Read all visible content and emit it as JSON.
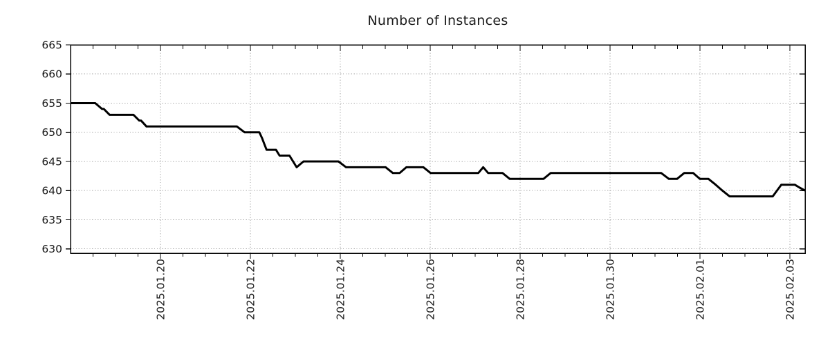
{
  "chart_data": {
    "type": "line",
    "title": "Number of Instances",
    "xlabel": "",
    "ylabel": "",
    "legend": "none",
    "grid": true,
    "grid_color": "#a6a6a6",
    "line_color": "#000000",
    "text_color": "#1a1a1a",
    "x_range_days": [
      0,
      16.34
    ],
    "x_minor_tick_step_days": 0.5,
    "x_major_tick_step_days": 2,
    "x_ticks": [
      {
        "t": 2,
        "label": "2025.01.20"
      },
      {
        "t": 4,
        "label": "2025.01.22"
      },
      {
        "t": 6,
        "label": "2025.01.24"
      },
      {
        "t": 8,
        "label": "2025.01.26"
      },
      {
        "t": 10,
        "label": "2025.01.28"
      },
      {
        "t": 12,
        "label": "2025.01.30"
      },
      {
        "t": 14,
        "label": "2025.02.01"
      },
      {
        "t": 16,
        "label": "2025.02.03"
      }
    ],
    "y_range": [
      629.25,
      665
    ],
    "y_ticks": [
      665,
      660,
      655,
      650,
      645,
      640,
      635,
      630
    ],
    "series": [
      {
        "name": "instances",
        "points": [
          [
            0.0,
            655
          ],
          [
            0.55,
            655
          ],
          [
            0.7,
            654
          ],
          [
            0.74,
            654
          ],
          [
            0.87,
            653
          ],
          [
            1.4,
            653
          ],
          [
            1.53,
            652
          ],
          [
            1.57,
            652
          ],
          [
            1.69,
            651
          ],
          [
            3.7,
            651
          ],
          [
            3.87,
            650
          ],
          [
            4.2,
            650
          ],
          [
            4.26,
            649
          ],
          [
            4.31,
            648
          ],
          [
            4.36,
            647
          ],
          [
            4.57,
            647
          ],
          [
            4.65,
            646
          ],
          [
            4.87,
            646
          ],
          [
            5.03,
            644
          ],
          [
            5.18,
            645
          ],
          [
            5.96,
            645
          ],
          [
            6.13,
            644
          ],
          [
            7.01,
            644
          ],
          [
            7.17,
            643
          ],
          [
            7.32,
            643
          ],
          [
            7.47,
            644
          ],
          [
            7.85,
            644
          ],
          [
            8.01,
            643
          ],
          [
            9.07,
            643
          ],
          [
            9.18,
            644
          ],
          [
            9.29,
            643
          ],
          [
            9.61,
            643
          ],
          [
            9.77,
            642
          ],
          [
            10.52,
            642
          ],
          [
            10.68,
            643
          ],
          [
            13.14,
            643
          ],
          [
            13.31,
            642
          ],
          [
            13.49,
            642
          ],
          [
            13.65,
            643
          ],
          [
            13.85,
            643
          ],
          [
            14.0,
            642
          ],
          [
            14.19,
            642
          ],
          [
            14.35,
            641
          ],
          [
            14.5,
            640
          ],
          [
            14.66,
            639
          ],
          [
            15.62,
            639
          ],
          [
            15.81,
            641
          ],
          [
            16.11,
            641
          ],
          [
            16.22,
            640.5
          ],
          [
            16.34,
            640
          ]
        ]
      }
    ]
  }
}
